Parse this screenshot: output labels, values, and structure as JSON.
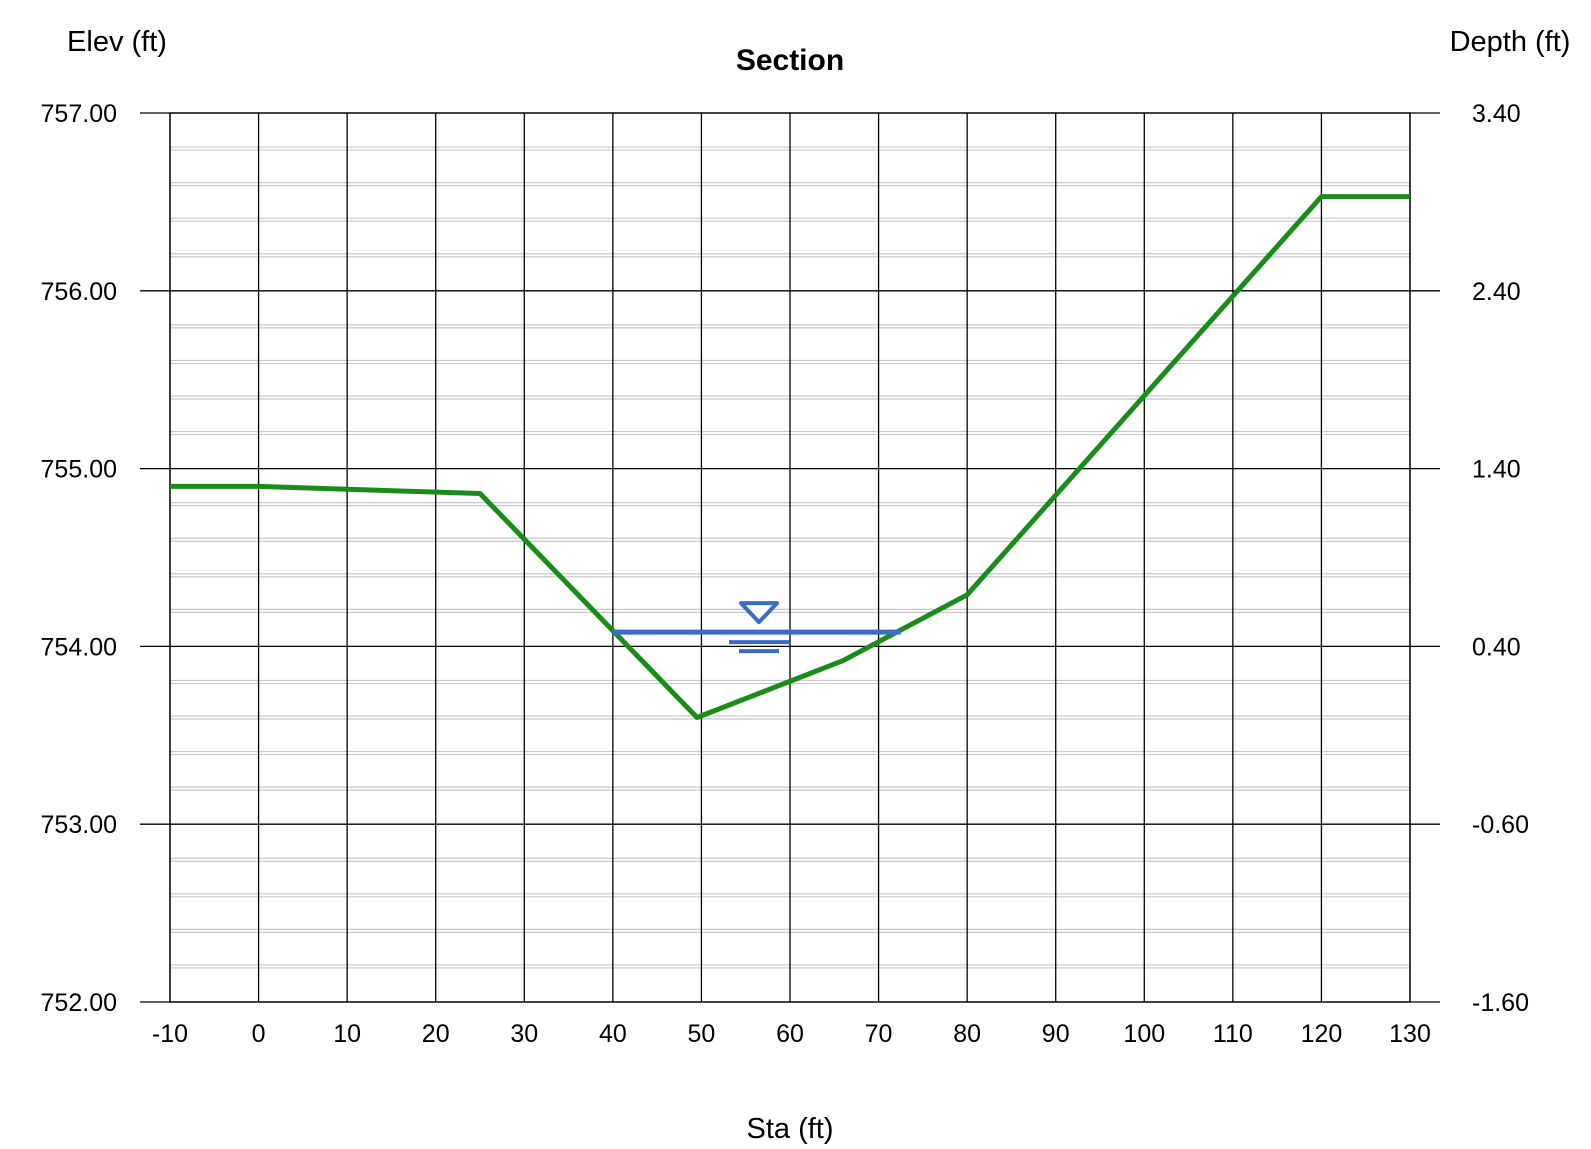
{
  "chart_data": {
    "type": "line",
    "title": "Section",
    "xlabel": "Sta (ft)",
    "ylabel_left": "Elev (ft)",
    "ylabel_right": "Depth (ft)",
    "xlim": [
      -10,
      130
    ],
    "ylim_left": [
      752.0,
      757.0
    ],
    "ylim_right": [
      -1.6,
      3.4
    ],
    "x_ticks": [
      "-10",
      "0",
      "10",
      "20",
      "30",
      "40",
      "50",
      "60",
      "70",
      "80",
      "90",
      "100",
      "110",
      "120",
      "130"
    ],
    "y_ticks_left": [
      "757.00",
      "756.00",
      "755.00",
      "754.00",
      "753.00",
      "752.00"
    ],
    "y_ticks_right": [
      "3.40",
      "2.40",
      "1.40",
      "0.40",
      "-0.60",
      "-1.60"
    ],
    "grid": true,
    "minor_y_grid_step": 0.2,
    "series": [
      {
        "kind": "ground-profile",
        "color": "#1a8c1a",
        "points": [
          [
            -10,
            754.9
          ],
          [
            0,
            754.9
          ],
          [
            25,
            754.86
          ],
          [
            49.5,
            753.6
          ],
          [
            66,
            753.92
          ],
          [
            80,
            754.29
          ],
          [
            120,
            756.53
          ],
          [
            130,
            756.53
          ]
        ]
      },
      {
        "kind": "water-surface",
        "color": "#3a6cc8",
        "x": [
          40,
          72.5
        ],
        "y": 754.08,
        "symbol_x": 56.5,
        "symbol_icon": "water-level-triangle-icon"
      }
    ]
  }
}
